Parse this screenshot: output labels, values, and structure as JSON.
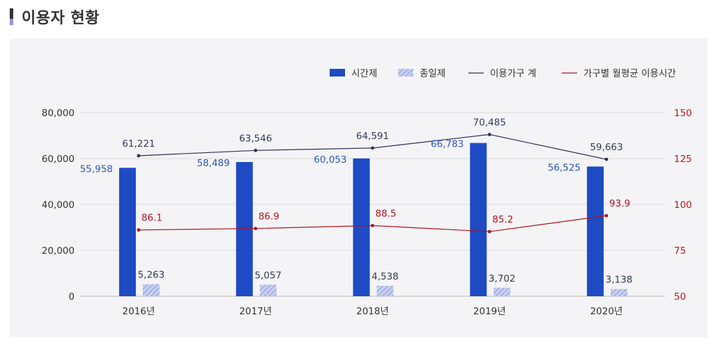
{
  "page": {
    "title": "이용자 현황"
  },
  "colors": {
    "bar_time": "#1e4bc3",
    "bar_day_fill": "#c7cff0",
    "bar_day_hatch": "#7f8fd8",
    "line_households": "#2f2f5a",
    "line_avg_time": "#b5121b",
    "right_axis": "#c0141c",
    "left_axis": "#333333",
    "label_time": "#2c56b8",
    "label_dark": "#333a5a"
  },
  "legend": [
    {
      "label": "시간제",
      "icon": "solid-bar-swatch"
    },
    {
      "label": "종일제",
      "icon": "hatched-bar-swatch"
    },
    {
      "label": "이용가구 계",
      "icon": "dark-line-swatch"
    },
    {
      "label": "가구별 월평균 이용시간",
      "icon": "red-line-swatch"
    }
  ],
  "chart_data": {
    "type": "bar",
    "categories": [
      "2016년",
      "2017년",
      "2018년",
      "2019년",
      "2020년"
    ],
    "series": [
      {
        "name": "시간제",
        "type": "bar",
        "axis": "left",
        "values": [
          55958,
          58489,
          60053,
          66783,
          56525
        ],
        "labels": [
          "55,958",
          "58,489",
          "60,053",
          "66,783",
          "56,525"
        ]
      },
      {
        "name": "종일제",
        "type": "bar",
        "axis": "left",
        "values": [
          5263,
          5057,
          4538,
          3702,
          3138
        ],
        "labels": [
          "5,263",
          "5,057",
          "4,538",
          "3,702",
          "3,138"
        ]
      },
      {
        "name": "이용가구 계",
        "type": "line",
        "axis": "left",
        "values": [
          61221,
          63546,
          64591,
          70485,
          59663
        ],
        "labels": [
          "61,221",
          "63,546",
          "64,591",
          "70,485",
          "59,663"
        ]
      },
      {
        "name": "가구별 월평균 이용시간",
        "type": "line",
        "axis": "right",
        "values": [
          86.1,
          86.9,
          88.5,
          85.2,
          93.9
        ],
        "labels": [
          "86.1",
          "86.9",
          "88.5",
          "85.2",
          "93.9"
        ]
      }
    ],
    "left_axis": {
      "ylim": [
        0,
        80000
      ],
      "ticks": [
        0,
        20000,
        40000,
        60000,
        80000
      ],
      "tick_labels": [
        "0",
        "20,000",
        "40,000",
        "60,000",
        "80,000"
      ]
    },
    "right_axis": {
      "ylim": [
        50,
        150
      ],
      "ticks": [
        50,
        75,
        100,
        125,
        150
      ],
      "tick_labels": [
        "50",
        "75",
        "100",
        "125",
        "150"
      ]
    },
    "grid": true,
    "legend_position": "top-right"
  }
}
